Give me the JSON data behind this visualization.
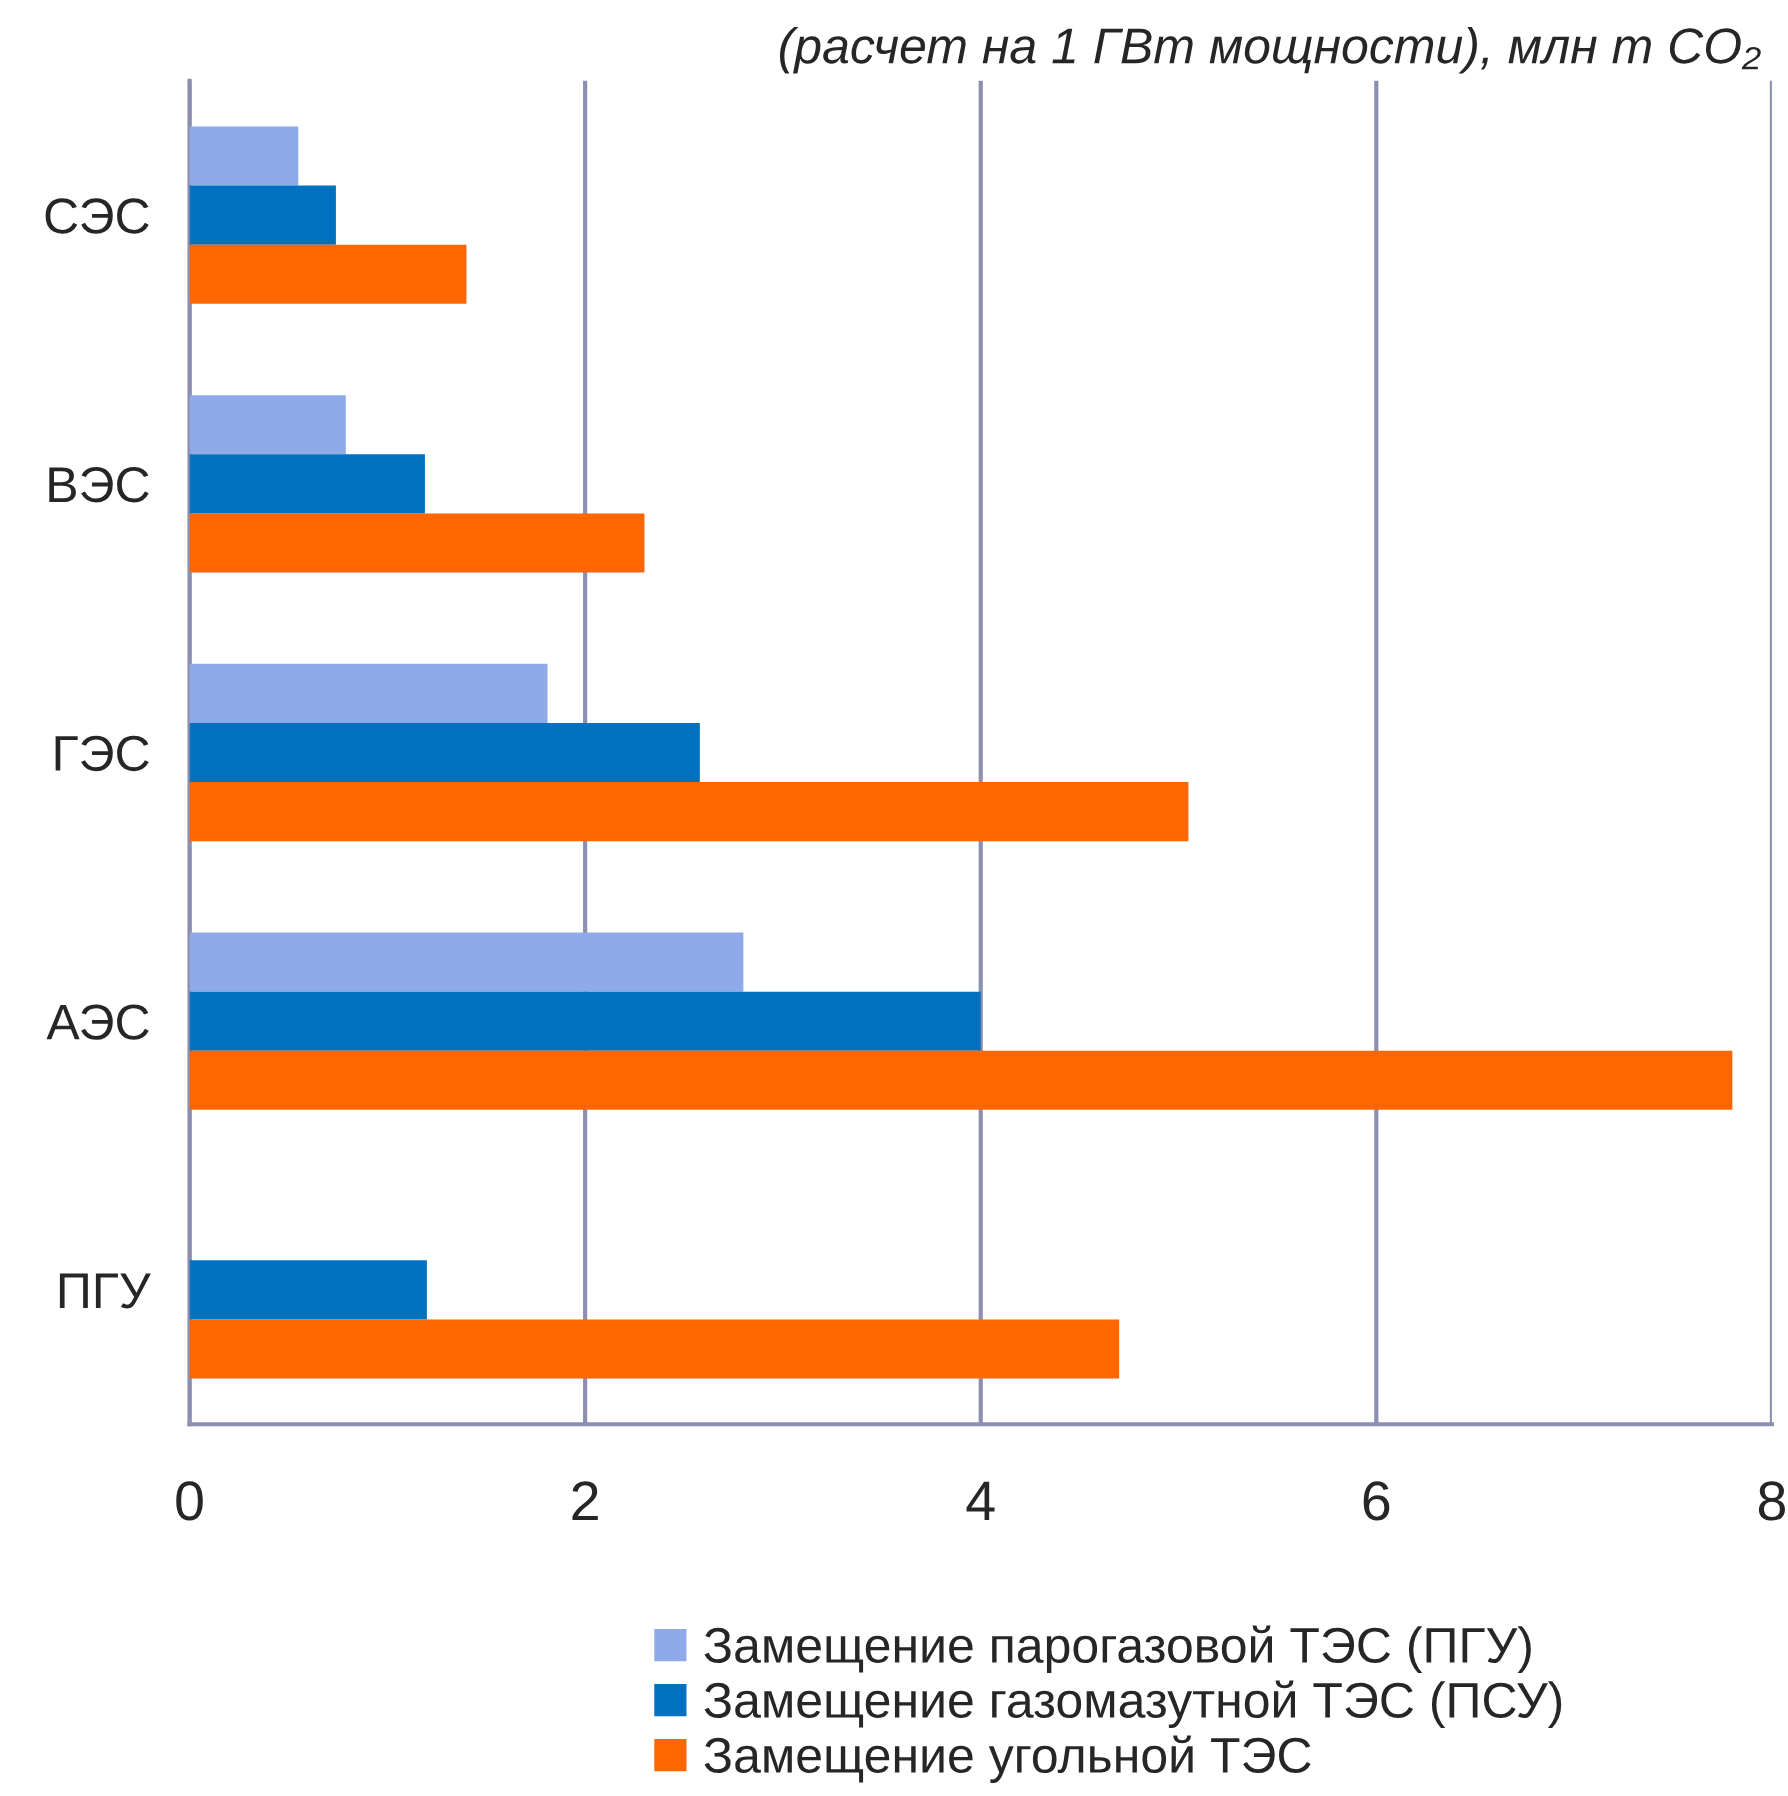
{
  "chart_data": {
    "type": "bar",
    "orientation": "horizontal",
    "title": "(расчет на 1 ГВт мощности), млн т CO₂",
    "categories": [
      "СЭС",
      "ВЭС",
      "ГЭС",
      "АЭС",
      "ПГУ"
    ],
    "series": [
      {
        "name": "Замещение парогазовой ТЭС (ПГУ)",
        "color": "#8faae8",
        "values": [
          0.55,
          0.79,
          1.81,
          2.8,
          null
        ]
      },
      {
        "name": "Замещение газомазутной ТЭС (ПСУ)",
        "color": "#0070c0",
        "values": [
          0.74,
          1.19,
          2.58,
          4.0,
          1.2
        ]
      },
      {
        "name": "Замещение угольной ТЭС",
        "color": "#ff6600",
        "values": [
          1.4,
          2.3,
          5.05,
          7.8,
          4.7
        ]
      }
    ],
    "xlim": [
      0,
      8
    ],
    "xticks": [
      0,
      2,
      4,
      6,
      8
    ],
    "grid": "x",
    "legend": "bottom"
  }
}
